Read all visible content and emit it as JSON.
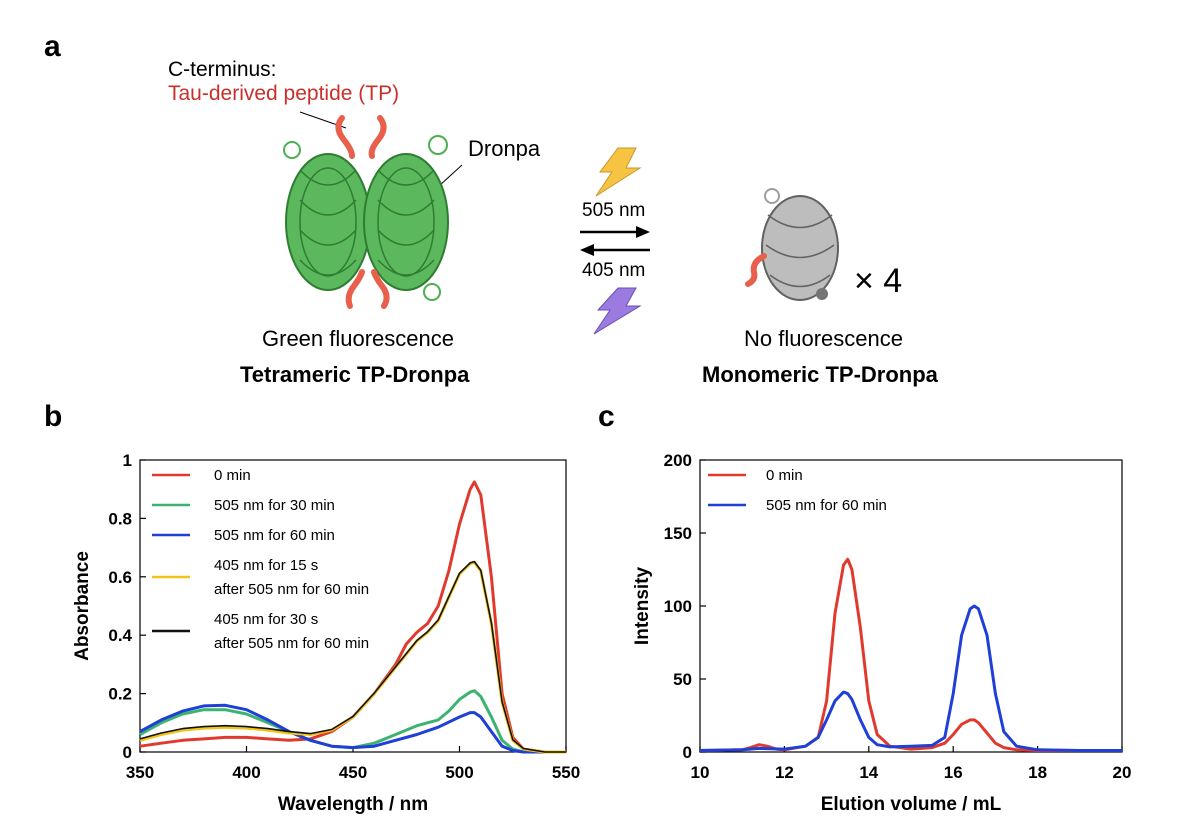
{
  "panel_a": {
    "label": "a",
    "c_terminus_label": "C-terminus:",
    "peptide_label": "Tau-derived peptide (TP)",
    "protein_label": "Dronpa",
    "forward_light": "505 nm",
    "reverse_light": "405 nm",
    "multiplier": "× 4",
    "left_state": "Green fluorescence",
    "left_name": "Tetrameric TP-Dronpa",
    "right_state": "No fluorescence",
    "right_name": "Monomeric TP-Dronpa",
    "colors": {
      "tetramer": "#4caf50",
      "monomer": "#9e9e9e",
      "peptide": "#e8604c",
      "bolt_yellow": "#f6c343",
      "bolt_purple": "#9b7be0"
    }
  },
  "chart_data": [
    {
      "panel": "b",
      "type": "line",
      "title": "",
      "xlabel": "Wavelength / nm",
      "ylabel": "Absorbance",
      "xlim": [
        350,
        550
      ],
      "ylim": [
        0,
        1
      ],
      "xticks": [
        350,
        400,
        450,
        500,
        550
      ],
      "yticks": [
        0,
        0.2,
        0.4,
        0.6,
        0.8,
        1
      ],
      "ytick_labels": [
        "0",
        "0.2",
        "0.4",
        "0.6",
        "0.8",
        "1"
      ],
      "legend_position": "top-left",
      "series": [
        {
          "name": "0 min",
          "legend": [
            "0 min"
          ],
          "color": "#e03a2f",
          "x": [
            350,
            360,
            370,
            380,
            390,
            400,
            410,
            420,
            430,
            440,
            450,
            460,
            470,
            475,
            480,
            485,
            490,
            495,
            500,
            505,
            507,
            510,
            515,
            520,
            525,
            530,
            540,
            550
          ],
          "y": [
            0.02,
            0.03,
            0.04,
            0.045,
            0.05,
            0.05,
            0.045,
            0.04,
            0.045,
            0.07,
            0.12,
            0.2,
            0.3,
            0.37,
            0.41,
            0.44,
            0.5,
            0.62,
            0.78,
            0.9,
            0.925,
            0.88,
            0.6,
            0.2,
            0.05,
            0.01,
            0.0,
            0.0
          ]
        },
        {
          "name": "505 nm for 30 min",
          "legend": [
            "505 nm for 30 min"
          ],
          "color": "#3cb371",
          "x": [
            350,
            360,
            370,
            380,
            390,
            400,
            410,
            420,
            430,
            440,
            450,
            460,
            470,
            480,
            490,
            495,
            500,
            505,
            507,
            510,
            515,
            520,
            525,
            530,
            540,
            550
          ],
          "y": [
            0.06,
            0.1,
            0.13,
            0.145,
            0.145,
            0.13,
            0.1,
            0.07,
            0.04,
            0.02,
            0.015,
            0.03,
            0.06,
            0.09,
            0.11,
            0.14,
            0.18,
            0.205,
            0.21,
            0.19,
            0.12,
            0.04,
            0.01,
            0.0,
            0.0,
            0.0
          ]
        },
        {
          "name": "505 nm for 60 min",
          "legend": [
            "505 nm for 60 min"
          ],
          "color": "#1f3fd6",
          "x": [
            350,
            360,
            370,
            380,
            390,
            400,
            410,
            420,
            430,
            440,
            450,
            460,
            470,
            480,
            490,
            500,
            505,
            507,
            510,
            515,
            520,
            525,
            530,
            540,
            550
          ],
          "y": [
            0.07,
            0.11,
            0.14,
            0.158,
            0.16,
            0.145,
            0.11,
            0.07,
            0.04,
            0.02,
            0.015,
            0.02,
            0.04,
            0.06,
            0.085,
            0.12,
            0.135,
            0.135,
            0.12,
            0.07,
            0.02,
            0.005,
            0.0,
            0.0,
            0.0
          ]
        },
        {
          "name": "405 nm for 15 s after 505 nm for 60 min",
          "legend": [
            "405 nm for 15 s",
            "after 505 nm for 60 min"
          ],
          "color": "#f2c418",
          "x": [
            350,
            360,
            370,
            380,
            390,
            400,
            410,
            420,
            430,
            440,
            450,
            460,
            470,
            480,
            485,
            490,
            495,
            500,
            505,
            507,
            510,
            515,
            520,
            525,
            530,
            540,
            550
          ],
          "y": [
            0.04,
            0.06,
            0.075,
            0.082,
            0.085,
            0.082,
            0.075,
            0.065,
            0.06,
            0.075,
            0.12,
            0.2,
            0.29,
            0.38,
            0.41,
            0.45,
            0.53,
            0.61,
            0.645,
            0.65,
            0.62,
            0.44,
            0.17,
            0.04,
            0.01,
            0.0,
            0.0
          ]
        },
        {
          "name": "405 nm for 30 s after 505 nm for 60 min",
          "legend": [
            "405 nm for 30 s",
            "after 505 nm for 60 min"
          ],
          "color": "#111111",
          "x": [
            350,
            360,
            370,
            380,
            390,
            400,
            410,
            420,
            430,
            440,
            450,
            460,
            470,
            480,
            485,
            490,
            495,
            500,
            505,
            507,
            510,
            515,
            520,
            525,
            530,
            540,
            550
          ],
          "y": [
            0.045,
            0.065,
            0.08,
            0.087,
            0.09,
            0.087,
            0.08,
            0.07,
            0.063,
            0.077,
            0.122,
            0.202,
            0.292,
            0.382,
            0.412,
            0.452,
            0.532,
            0.612,
            0.648,
            0.652,
            0.622,
            0.442,
            0.172,
            0.042,
            0.012,
            0.0,
            0.0
          ]
        }
      ]
    },
    {
      "panel": "c",
      "type": "line",
      "title": "",
      "xlabel": "Elution volume / mL",
      "ylabel": "Intensity",
      "xlim": [
        10,
        20
      ],
      "ylim": [
        0,
        200
      ],
      "xticks": [
        10,
        12,
        14,
        16,
        18,
        20
      ],
      "yticks": [
        0,
        50,
        100,
        150,
        200
      ],
      "ytick_labels": [
        "0",
        "50",
        "100",
        "150",
        "200"
      ],
      "legend_position": "top-left",
      "series": [
        {
          "name": "0 min",
          "legend": [
            "0 min"
          ],
          "color": "#e03a2f",
          "x": [
            10,
            11,
            11.2,
            11.4,
            11.6,
            11.8,
            12,
            12.5,
            12.8,
            13,
            13.2,
            13.4,
            13.5,
            13.6,
            13.8,
            14,
            14.2,
            14.5,
            15,
            15.5,
            15.8,
            16,
            16.2,
            16.4,
            16.5,
            16.6,
            16.8,
            17,
            17.2,
            17.5,
            18,
            19,
            20
          ],
          "y": [
            1,
            1.5,
            3,
            5,
            4,
            2,
            1.5,
            4,
            10,
            35,
            95,
            128,
            132,
            125,
            85,
            35,
            12,
            4,
            2,
            3,
            6,
            12,
            19,
            22,
            22,
            20,
            13,
            6,
            3,
            1.5,
            1,
            1,
            1
          ]
        },
        {
          "name": "505 nm for 60 min",
          "legend": [
            "505 nm for 60 min"
          ],
          "color": "#1f3fd6",
          "x": [
            10,
            11,
            11.4,
            12,
            12.5,
            12.8,
            13,
            13.2,
            13.4,
            13.5,
            13.6,
            13.8,
            14,
            14.2,
            14.5,
            15,
            15.5,
            15.8,
            16,
            16.2,
            16.4,
            16.5,
            16.6,
            16.8,
            17,
            17.2,
            17.5,
            18,
            19,
            20
          ],
          "y": [
            1,
            1.5,
            2.5,
            2,
            4,
            10,
            22,
            35,
            41,
            40,
            36,
            22,
            10,
            5,
            3.5,
            4,
            4.5,
            10,
            40,
            80,
            98,
            100,
            98,
            80,
            40,
            14,
            4,
            1.5,
            1,
            1
          ]
        }
      ]
    }
  ]
}
